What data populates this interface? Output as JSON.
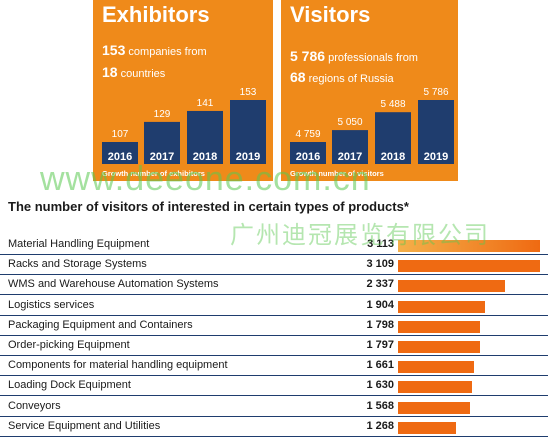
{
  "exhibitors": {
    "title": "Exhibitors",
    "line1_num": "153",
    "line1_text": " companies from",
    "line2_num": "18",
    "line2_text": " countries",
    "note": "Growth number of exhibitors"
  },
  "visitors": {
    "title": "Visitors",
    "line1_num": "5 786",
    "line1_text": " professionals from",
    "line2_num": "68",
    "line2_text": " regions of Russia",
    "note": "Growth number of visitors"
  },
  "products_heading": "The number of visitors of interested in certain types of products*",
  "watermark": "www.deeone.com.cn",
  "watermark_cn": "广州迪冠展览有限公司",
  "colors": {
    "orange": "#ef8a1a",
    "navy": "#1f3d6e",
    "bar": "#ef6a12"
  },
  "chart_data": [
    {
      "type": "bar",
      "categories": [
        "2016",
        "2017",
        "2018",
        "2019"
      ],
      "values": [
        107,
        129,
        141,
        153
      ],
      "value_labels": [
        "107",
        "129",
        "141",
        "153"
      ],
      "title": "Growth number of exhibitors"
    },
    {
      "type": "bar",
      "categories": [
        "2016",
        "2017",
        "2018",
        "2019"
      ],
      "values": [
        4759,
        5050,
        5488,
        5786
      ],
      "value_labels": [
        "4 759",
        "5 050",
        "5 488",
        "5 786"
      ],
      "title": "Growth number of visitors"
    },
    {
      "type": "bar",
      "orientation": "horizontal",
      "title": "The number of visitors of interested in certain types of products*",
      "categories": [
        "Material Handling Equipment",
        "Racks and Storage Systems",
        "WMS and Warehouse Automation Systems",
        "Logistics services",
        "Packaging Equipment and Containers",
        "Order-picking Equipment",
        "Components for material handling equipment",
        "Loading Dock Equipment",
        "Conveyors",
        "Service Equipment and Utilities"
      ],
      "values": [
        3113,
        3109,
        2337,
        1904,
        1798,
        1797,
        1661,
        1630,
        1568,
        1268
      ],
      "value_labels": [
        "3 113",
        "3 109",
        "2 337",
        "1 904",
        "1 798",
        "1 797",
        "1 661",
        "1 630",
        "1 568",
        "1 268"
      ]
    }
  ]
}
